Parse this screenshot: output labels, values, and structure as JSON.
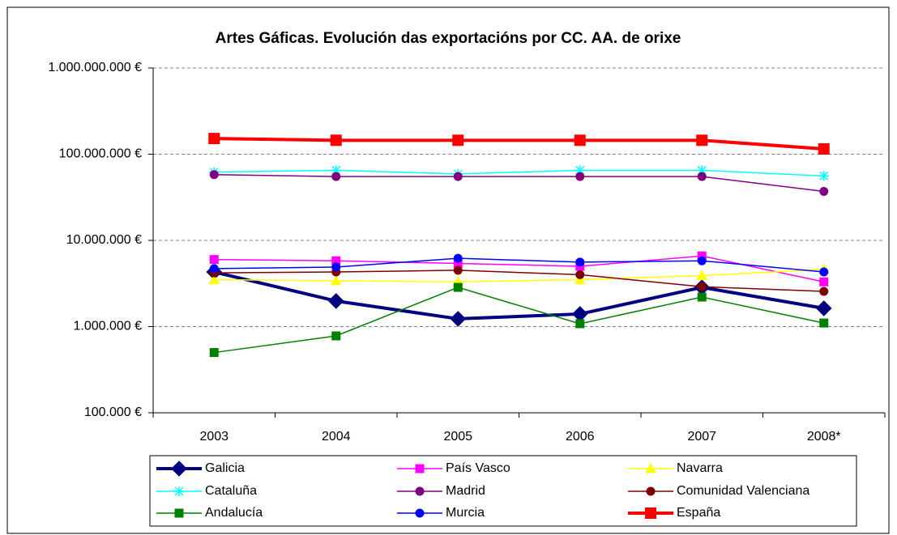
{
  "chart_data": {
    "type": "line",
    "title": "Artes Gáficas. Evolución das exportacións por CC. AA. de orixe",
    "categories": [
      "2003",
      "2004",
      "2005",
      "2006",
      "2007",
      "2008*"
    ],
    "log_scale": true,
    "grid": true,
    "legend": "bottom",
    "ylim": [
      100000,
      1000000000
    ],
    "yticks": [
      {
        "value": 100000,
        "label": "100.000 €"
      },
      {
        "value": 1000000,
        "label": "1.000.000 €"
      },
      {
        "value": 10000000,
        "label": "10.000.000 €"
      },
      {
        "value": 100000000,
        "label": "100.000.000 €"
      },
      {
        "value": 1000000000,
        "label": "1.000.000.000 €"
      }
    ],
    "series": [
      {
        "name": "Galicia",
        "color": "#000080",
        "marker": "diamond",
        "line_width": 4,
        "values": [
          4300000,
          1980000,
          1230000,
          1400000,
          2850000,
          1630000
        ]
      },
      {
        "name": "País Vasco",
        "color": "#ff00ff",
        "marker": "square",
        "line_width": 1.5,
        "values": [
          6000000,
          5800000,
          5400000,
          5000000,
          6600000,
          3300000
        ]
      },
      {
        "name": "Navarra",
        "color": "#ffff00",
        "marker": "triangle",
        "line_width": 1.5,
        "values": [
          3500000,
          3400000,
          3300000,
          3500000,
          3900000,
          4600000
        ]
      },
      {
        "name": "Cataluña",
        "color": "#00ffff",
        "marker": "asterisk",
        "line_width": 1.5,
        "values": [
          62000000,
          65000000,
          59000000,
          65000000,
          65000000,
          56000000
        ]
      },
      {
        "name": "Madrid",
        "color": "#800080",
        "marker": "circle",
        "line_width": 1.5,
        "values": [
          58000000,
          55000000,
          55000000,
          55000000,
          55000000,
          37000000
        ]
      },
      {
        "name": "Comunidad Valenciana",
        "color": "#800000",
        "marker": "circle",
        "line_width": 1.5,
        "values": [
          4200000,
          4300000,
          4500000,
          4000000,
          2900000,
          2560000
        ]
      },
      {
        "name": "Andalucía",
        "color": "#008000",
        "marker": "square",
        "line_width": 1.5,
        "values": [
          500000,
          780000,
          2850000,
          1080000,
          2200000,
          1100000
        ]
      },
      {
        "name": "Murcia",
        "color": "#0000ff",
        "marker": "circle",
        "line_width": 1.5,
        "values": [
          4700000,
          4900000,
          6200000,
          5600000,
          5800000,
          4300000
        ]
      },
      {
        "name": "España",
        "color": "#ff0000",
        "marker": "square",
        "line_width": 4,
        "values": [
          152000000,
          145000000,
          145000000,
          145000000,
          145000000,
          115000000
        ]
      }
    ]
  }
}
